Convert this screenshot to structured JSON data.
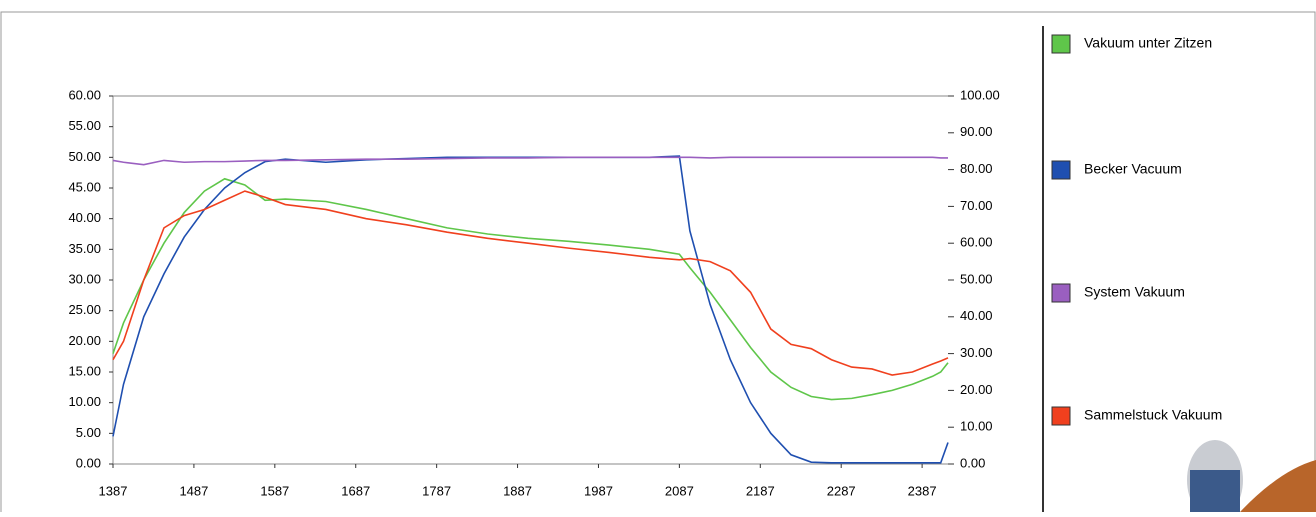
{
  "chart_data": {
    "type": "line",
    "x": [
      1387,
      1400,
      1425,
      1450,
      1475,
      1500,
      1525,
      1550,
      1575,
      1600,
      1650,
      1700,
      1750,
      1800,
      1850,
      1900,
      1950,
      2000,
      2050,
      2087,
      2100,
      2125,
      2150,
      2175,
      2200,
      2225,
      2250,
      2275,
      2300,
      2325,
      2350,
      2375,
      2400,
      2410,
      2419
    ],
    "series": [
      {
        "name": "Vakuum unter Zitzen",
        "color": "#5fc64a",
        "values": [
          18,
          23,
          30,
          36,
          41,
          44.5,
          46.5,
          45.5,
          43,
          43.2,
          42.8,
          41.5,
          40,
          38.5,
          37.5,
          36.8,
          36.3,
          35.7,
          35,
          34.2,
          32,
          28,
          23.5,
          19,
          15,
          12.5,
          11,
          10.5,
          10.7,
          11.3,
          12,
          13,
          14.3,
          15,
          16.5
        ]
      },
      {
        "name": "Becker Vacuum",
        "color": "#1f4fb0",
        "values": [
          4.5,
          13,
          24,
          31,
          37,
          41.5,
          45,
          47.5,
          49.3,
          49.7,
          49.2,
          49.6,
          49.8,
          50,
          50,
          50,
          50,
          50,
          50,
          50.2,
          38,
          26,
          17,
          10,
          5,
          1.5,
          0.3,
          0.2,
          0.2,
          0.2,
          0.2,
          0.2,
          0.2,
          0.2,
          3.5
        ]
      },
      {
        "name": "System Vakuum",
        "color": "#9a5fc0",
        "values": [
          49.5,
          49.2,
          48.8,
          49.5,
          49.2,
          49.3,
          49.3,
          49.4,
          49.5,
          49.5,
          49.6,
          49.7,
          49.7,
          49.8,
          49.9,
          49.9,
          50,
          50,
          50,
          50,
          50,
          49.9,
          50,
          50,
          50,
          50,
          50,
          50,
          50,
          50,
          50,
          50,
          50,
          49.9,
          49.9
        ]
      },
      {
        "name": "Sammelstuck Vakuum",
        "color": "#f0401e",
        "values": [
          17,
          20,
          30,
          38.5,
          40.5,
          41.5,
          43,
          44.5,
          43.5,
          42.3,
          41.5,
          40,
          39,
          37.8,
          36.8,
          36,
          35.2,
          34.5,
          33.7,
          33.3,
          33.5,
          33,
          31.5,
          28,
          22,
          19.5,
          18.8,
          17,
          15.8,
          15.5,
          14.5,
          15,
          16.3,
          16.8,
          17.3
        ]
      }
    ],
    "xlim": [
      1387,
      2419
    ],
    "xticks": [
      1387,
      1487,
      1587,
      1687,
      1787,
      1887,
      1987,
      2087,
      2187,
      2287,
      2387
    ],
    "ylim": [
      0,
      60
    ],
    "yticks": [
      {
        "value": 0,
        "label": "0.00"
      },
      {
        "value": 5,
        "label": "5.00"
      },
      {
        "value": 10,
        "label": "10.00"
      },
      {
        "value": 15,
        "label": "15.00"
      },
      {
        "value": 20,
        "label": "20.00"
      },
      {
        "value": 25,
        "label": "25.00"
      },
      {
        "value": 30,
        "label": "30.00"
      },
      {
        "value": 35,
        "label": "35.00"
      },
      {
        "value": 40,
        "label": "40.00"
      },
      {
        "value": 45,
        "label": "45.00"
      },
      {
        "value": 50,
        "label": "50.00"
      },
      {
        "value": 55,
        "label": "55.00"
      },
      {
        "value": 60,
        "label": "60.00"
      }
    ],
    "y2lim": [
      0,
      100
    ],
    "y2ticks": [
      {
        "value": 0,
        "label": "0.00"
      },
      {
        "value": 10,
        "label": "10.00"
      },
      {
        "value": 20,
        "label": "20.00"
      },
      {
        "value": 30,
        "label": "30.00"
      },
      {
        "value": 40,
        "label": "40.00"
      },
      {
        "value": 50,
        "label": "50.00"
      },
      {
        "value": 60,
        "label": "60.00"
      },
      {
        "value": 70,
        "label": "70.00"
      },
      {
        "value": 80,
        "label": "80.00"
      },
      {
        "value": 90,
        "label": "90.00"
      },
      {
        "value": 100,
        "label": "100.00"
      }
    ]
  }
}
